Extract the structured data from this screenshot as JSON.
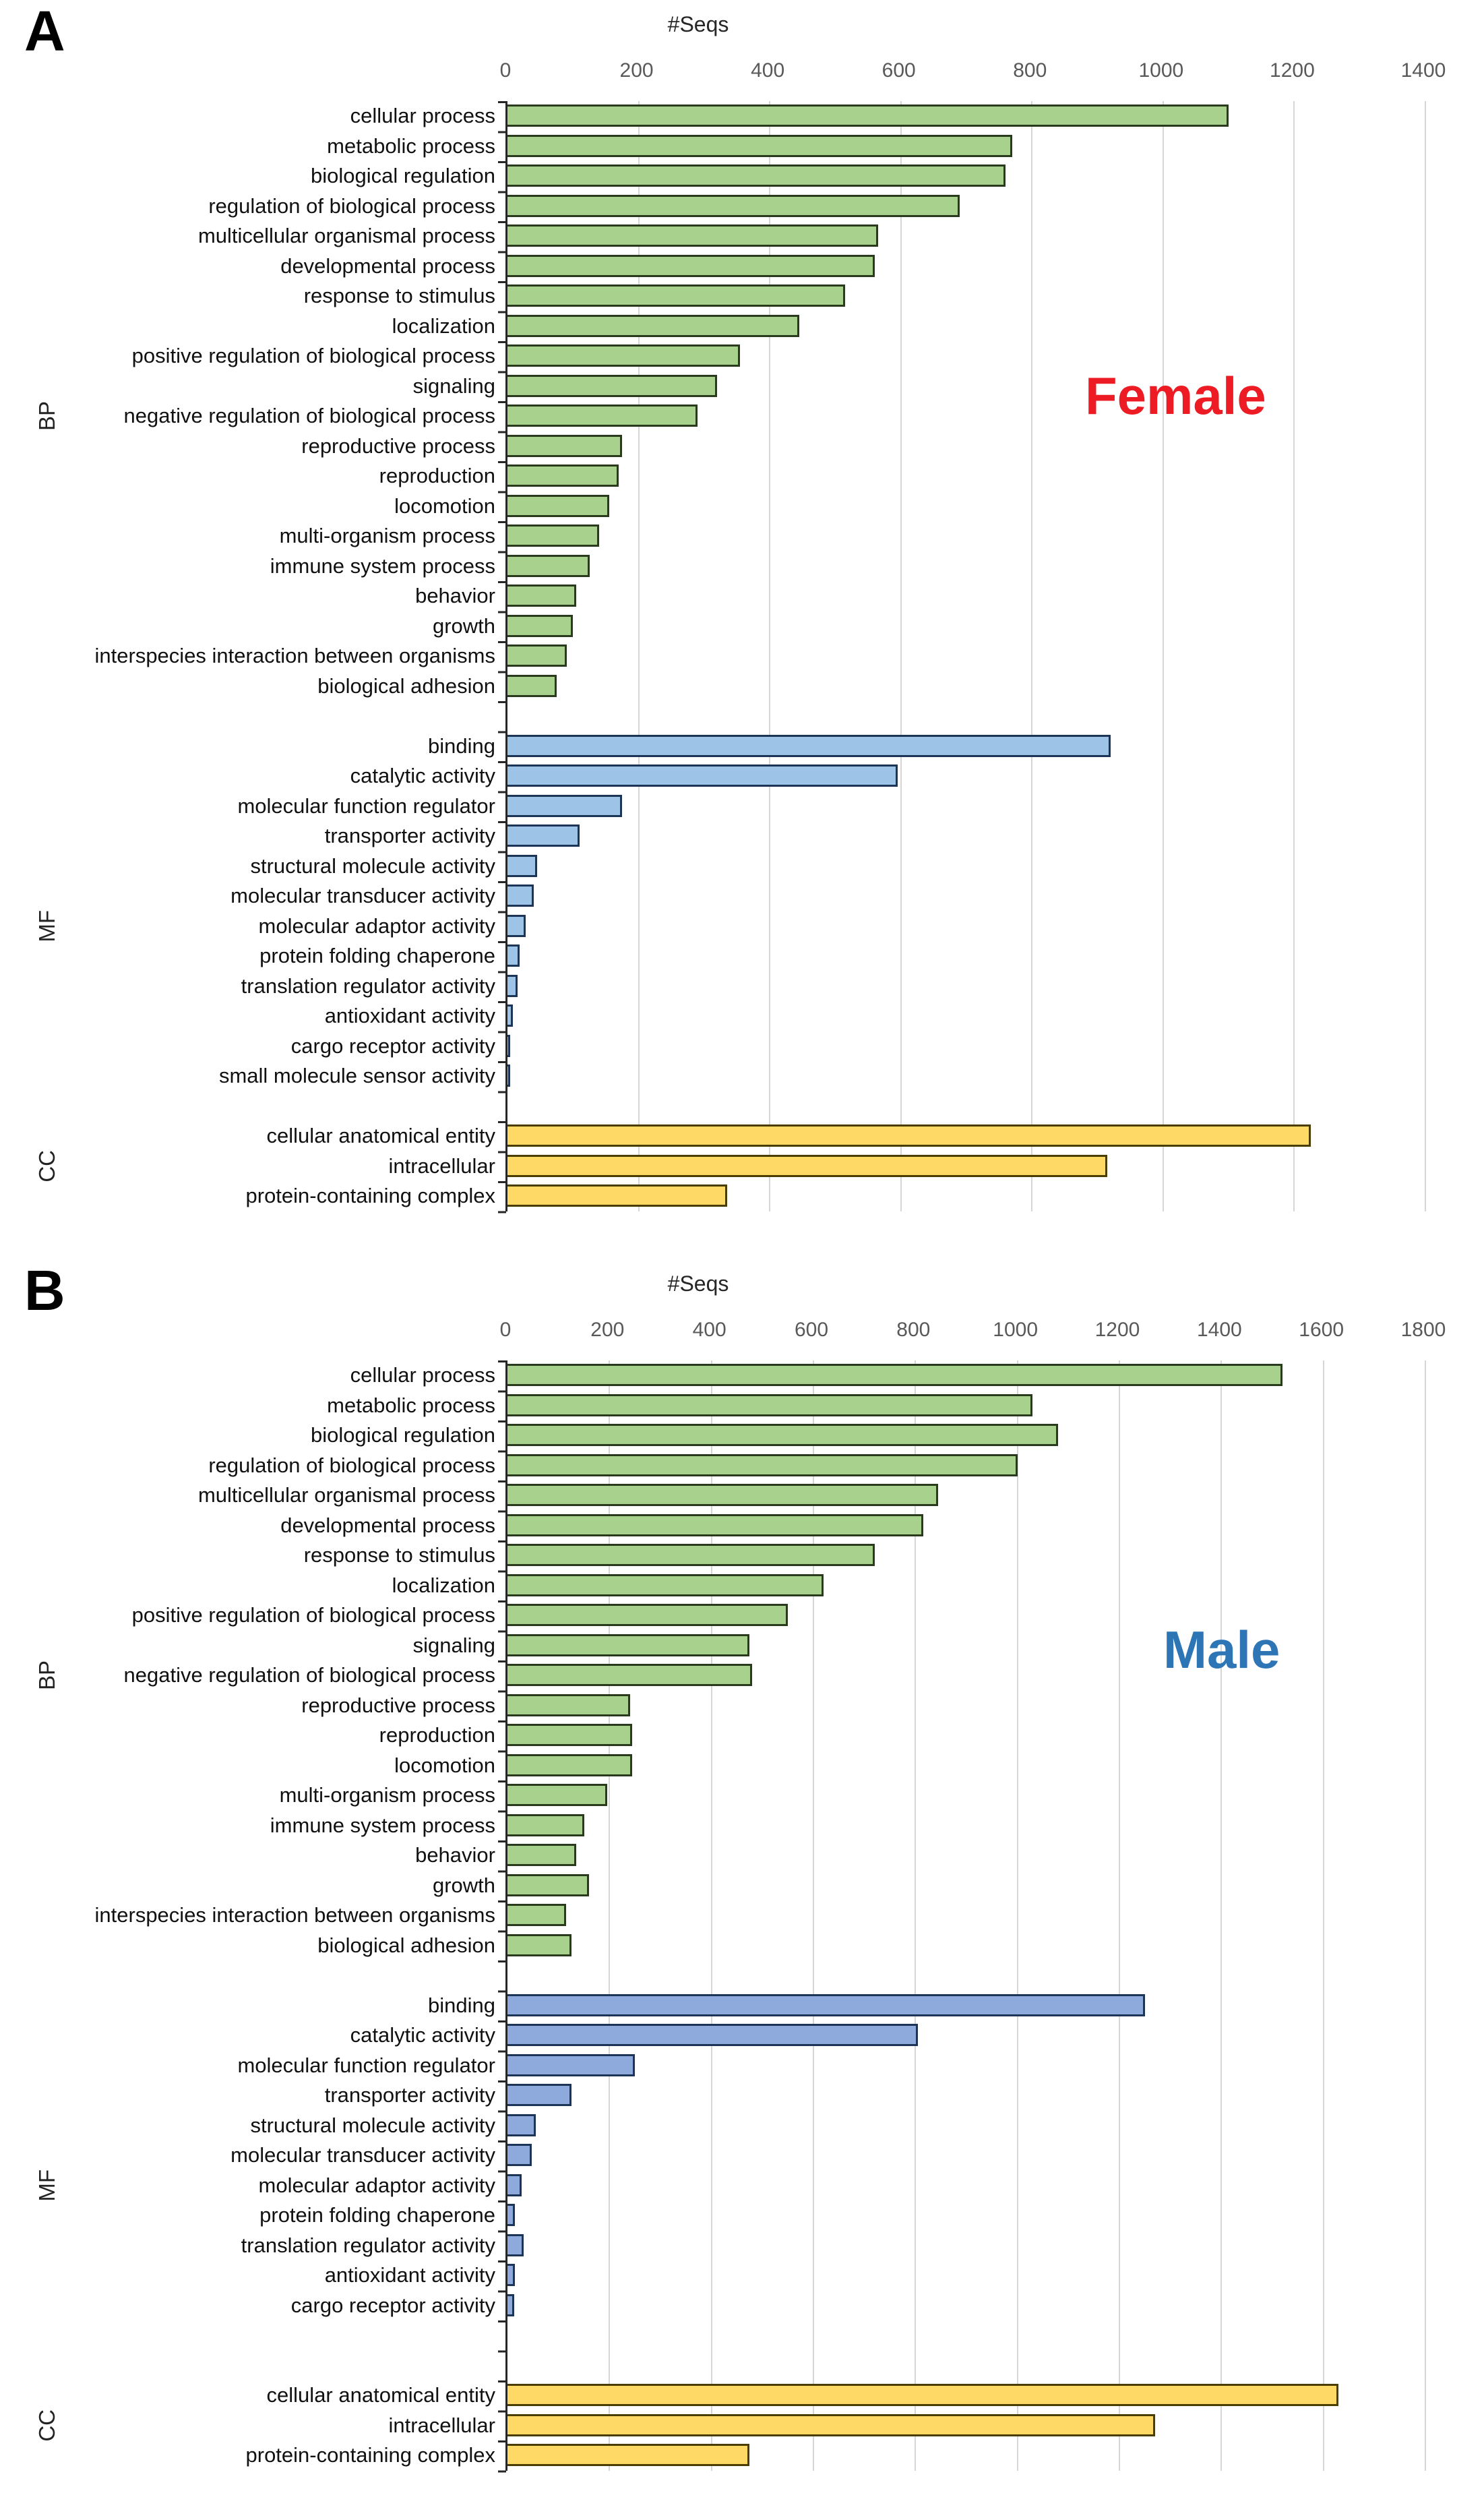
{
  "figure_title": "",
  "chart_data": [
    {
      "type": "bar",
      "orientation": "horizontal",
      "panel_letter": "A",
      "sample_label": "Female",
      "sample_color": "#ed1c24",
      "axis_title": "#Seqs",
      "xlim": [
        0,
        1400
      ],
      "tick_step": 200,
      "ticks": [
        0,
        200,
        400,
        600,
        800,
        1000,
        1200,
        1400
      ],
      "grid": true,
      "groups": [
        {
          "name": "BP",
          "fill": "#a9d18e",
          "border": "#2a3b1d",
          "gap_after": 1,
          "categories": [
            "cellular process",
            "metabolic process",
            "biological regulation",
            "regulation of biological process",
            "multicellular organismal process",
            "developmental process",
            "response to stimulus",
            "localization",
            "positive regulation of biological process",
            "signaling",
            "negative regulation of biological process",
            "reproductive process",
            "reproduction",
            "locomotion",
            "multi-organism process",
            "immune system process",
            "behavior",
            "growth",
            "interspecies interaction between organisms",
            "biological adhesion"
          ],
          "values": [
            1100,
            770,
            760,
            690,
            565,
            560,
            515,
            445,
            355,
            320,
            290,
            175,
            170,
            155,
            140,
            125,
            105,
            100,
            90,
            75
          ]
        },
        {
          "name": "MF",
          "fill": "#9dc3e6",
          "border": "#1c3557",
          "gap_after": 1,
          "categories": [
            "binding",
            "catalytic activity",
            "molecular function regulator",
            "transporter activity",
            "structural molecule activity",
            "molecular transducer activity",
            "molecular adaptor activity",
            "protein folding chaperone",
            "translation regulator activity",
            "antioxidant activity",
            "cargo receptor activity",
            "small molecule sensor activity"
          ],
          "values": [
            920,
            595,
            175,
            110,
            45,
            40,
            28,
            18,
            15,
            8,
            4,
            2
          ]
        },
        {
          "name": "CC",
          "fill": "#ffd966",
          "border": "#4a3d00",
          "gap_after": 0,
          "categories": [
            "cellular anatomical entity",
            "intracellular",
            "protein-containing complex"
          ],
          "values": [
            1225,
            915,
            335
          ]
        }
      ]
    },
    {
      "type": "bar",
      "orientation": "horizontal",
      "panel_letter": "B",
      "sample_label": "Male",
      "sample_color": "#2e75b6",
      "axis_title": "#Seqs",
      "xlim": [
        0,
        1800
      ],
      "tick_step": 200,
      "ticks": [
        0,
        200,
        400,
        600,
        800,
        1000,
        1200,
        1400,
        1600,
        1800
      ],
      "grid": true,
      "groups": [
        {
          "name": "BP",
          "fill": "#a9d18e",
          "border": "#2a3b1d",
          "gap_after": 1,
          "categories": [
            "cellular process",
            "metabolic process",
            "biological regulation",
            "regulation of biological process",
            "multicellular organismal process",
            "developmental process",
            "response to stimulus",
            "localization",
            "positive regulation of biological process",
            "signaling",
            "negative regulation of biological process",
            "reproductive process",
            "reproduction",
            "locomotion",
            "multi-organism process",
            "immune system process",
            "behavior",
            "growth",
            "interspecies interaction between organisms",
            "biological adhesion"
          ],
          "values": [
            1520,
            1030,
            1080,
            1000,
            845,
            815,
            720,
            620,
            550,
            475,
            480,
            240,
            245,
            245,
            195,
            150,
            135,
            160,
            115,
            125
          ]
        },
        {
          "name": "MF",
          "fill": "#8ea9db",
          "border": "#1c3557",
          "gap_after": 2,
          "categories": [
            "binding",
            "catalytic activity",
            "molecular function regulator",
            "transporter activity",
            "structural molecule activity",
            "molecular transducer activity",
            "molecular adaptor activity",
            "protein folding chaperone",
            "translation regulator activity",
            "antioxidant activity",
            "cargo receptor activity"
          ],
          "values": [
            1250,
            805,
            250,
            125,
            55,
            48,
            28,
            15,
            32,
            15,
            13
          ]
        },
        {
          "name": "CC",
          "fill": "#ffd966",
          "border": "#4a3d00",
          "gap_after": 0,
          "categories": [
            "cellular anatomical entity",
            "intracellular",
            "protein-containing complex"
          ],
          "values": [
            1630,
            1270,
            475
          ]
        }
      ]
    }
  ]
}
